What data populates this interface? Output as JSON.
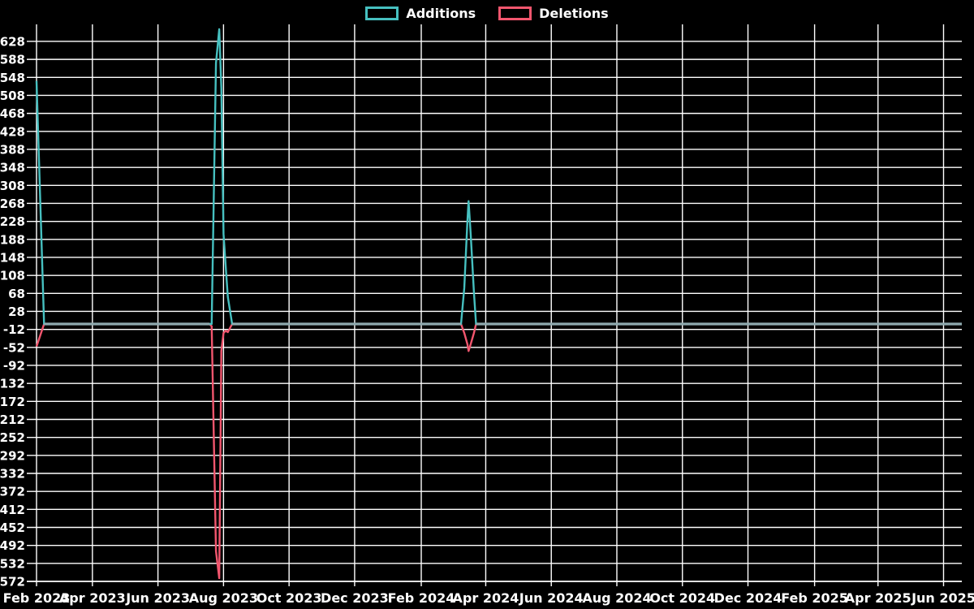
{
  "page": {
    "background": "#000000",
    "grid_color": "#ffffff"
  },
  "legend": {
    "items": [
      {
        "label": "Additions",
        "color": "#46c0c0"
      },
      {
        "label": "Deletions",
        "color": "#f2566e"
      }
    ]
  },
  "chart_data": {
    "type": "line",
    "title": "",
    "xlabel": "",
    "ylabel": "",
    "legend_position": "top-center",
    "grid": "on",
    "background": "#000000",
    "overlap_zero_line_color": "#8ea9ae",
    "x_axis": {
      "domain": [
        "2023-02-08",
        "2025-06-18"
      ],
      "ticks": [
        {
          "date": "2023-02-08",
          "label": "Feb 2023"
        },
        {
          "date": "2023-04-01",
          "label": "Apr 2023"
        },
        {
          "date": "2023-06-01",
          "label": "Jun 2023"
        },
        {
          "date": "2023-08-01",
          "label": "Aug 2023"
        },
        {
          "date": "2023-10-01",
          "label": "Oct 2023"
        },
        {
          "date": "2023-12-01",
          "label": "Dec 2023"
        },
        {
          "date": "2024-02-01",
          "label": "Feb 2024"
        },
        {
          "date": "2024-04-01",
          "label": "Apr 2024"
        },
        {
          "date": "2024-06-01",
          "label": "Jun 2024"
        },
        {
          "date": "2024-08-01",
          "label": "Aug 2024"
        },
        {
          "date": "2024-10-01",
          "label": "Oct 2024"
        },
        {
          "date": "2024-12-01",
          "label": "Dec 2024"
        },
        {
          "date": "2025-02-01",
          "label": "Feb 2025"
        },
        {
          "date": "2025-04-01",
          "label": "Apr 2025"
        },
        {
          "date": "2025-06-01",
          "label": "Jun 2025"
        }
      ]
    },
    "y_axis": {
      "min": -572,
      "max": 628,
      "step": 40,
      "ticks": [
        628,
        588,
        548,
        508,
        468,
        428,
        388,
        348,
        308,
        268,
        228,
        188,
        148,
        108,
        68,
        28,
        -12,
        -52,
        -92,
        -132,
        -172,
        -212,
        -252,
        -292,
        -332,
        -372,
        -412,
        -452,
        -492,
        -532,
        -572
      ]
    },
    "series": [
      {
        "name": "Additions",
        "color": "#46c0c0",
        "value_key": "additions"
      },
      {
        "name": "Deletions",
        "color": "#f2566e",
        "value_key": "deletions"
      }
    ],
    "points": [
      {
        "date": "2023-02-08",
        "additions": 540,
        "deletions": -50
      },
      {
        "date": "2023-02-15",
        "additions": 0,
        "deletions": 0
      },
      {
        "date": "2023-07-19",
        "additions": 0,
        "deletions": 0
      },
      {
        "date": "2023-07-21",
        "additions": 0,
        "deletions": -5
      },
      {
        "date": "2023-07-25",
        "additions": 580,
        "deletions": -505
      },
      {
        "date": "2023-07-28",
        "additions": 655,
        "deletions": -565
      },
      {
        "date": "2023-07-30",
        "additions": 525,
        "deletions": -60
      },
      {
        "date": "2023-08-01",
        "additions": 200,
        "deletions": -20
      },
      {
        "date": "2023-08-03",
        "additions": 130,
        "deletions": -15
      },
      {
        "date": "2023-08-05",
        "additions": 60,
        "deletions": -18
      },
      {
        "date": "2023-08-09",
        "additions": 0,
        "deletions": 0
      },
      {
        "date": "2024-03-09",
        "additions": 0,
        "deletions": 0
      },
      {
        "date": "2024-03-12",
        "additions": 80,
        "deletions": -20
      },
      {
        "date": "2024-03-15",
        "additions": 230,
        "deletions": -45
      },
      {
        "date": "2024-03-16",
        "additions": 273,
        "deletions": -60
      },
      {
        "date": "2024-03-18",
        "additions": 200,
        "deletions": -45
      },
      {
        "date": "2024-03-21",
        "additions": 70,
        "deletions": -20
      },
      {
        "date": "2024-03-23",
        "additions": 0,
        "deletions": 0
      },
      {
        "date": "2025-06-18",
        "additions": 0,
        "deletions": 0
      }
    ]
  }
}
